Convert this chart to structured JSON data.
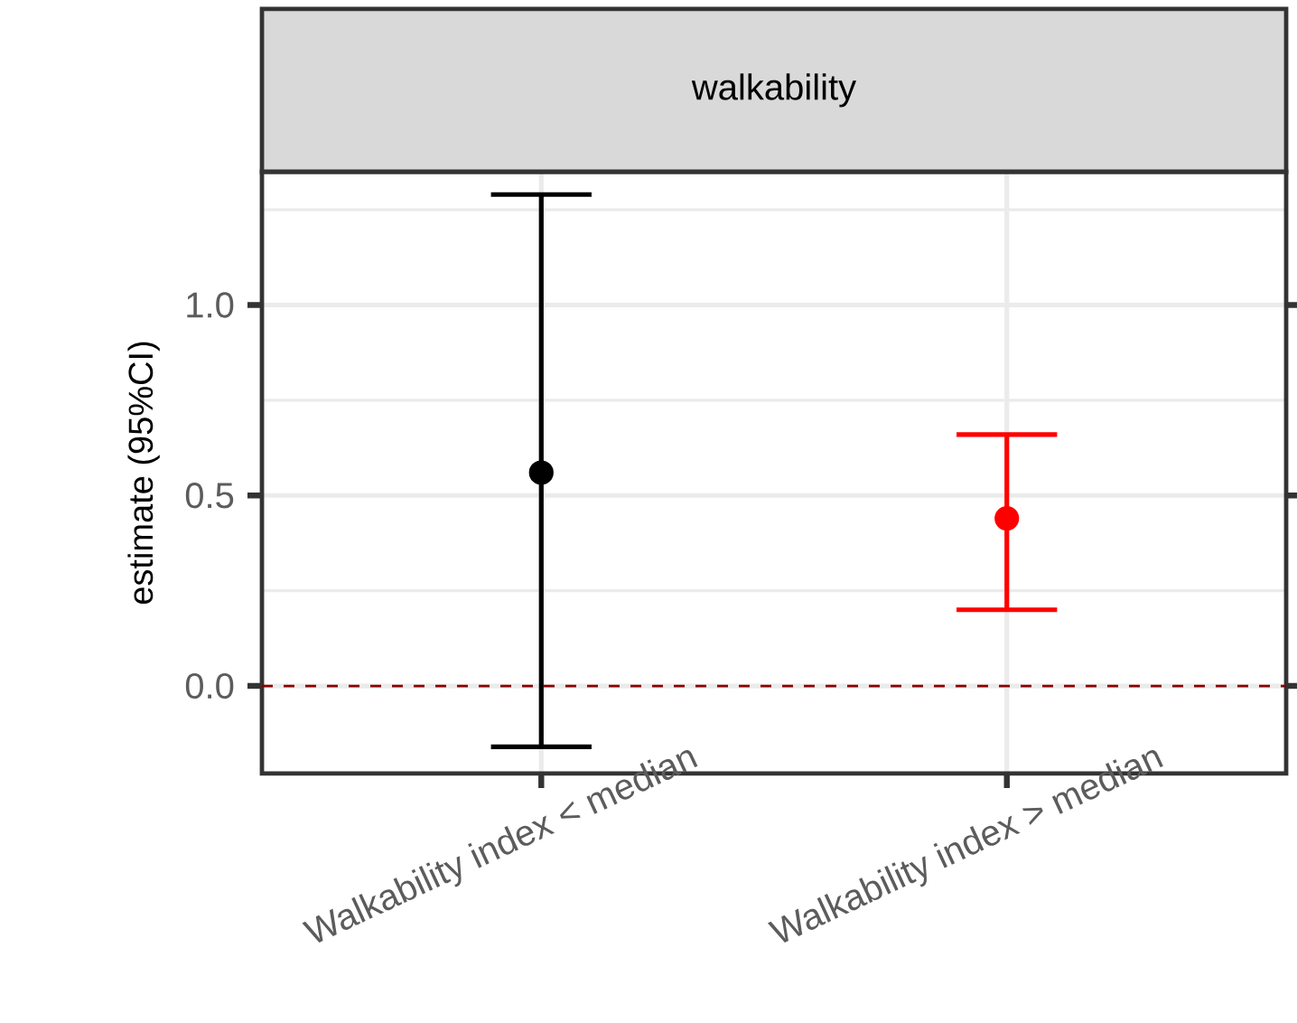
{
  "chart_data": {
    "type": "scatter",
    "title": "walkability",
    "ylabel": "estimate (95%CI)",
    "categories": [
      "Walkability index < median",
      "Walkability index > median"
    ],
    "values": [
      0.56,
      0.44
    ],
    "errors": [
      [
        -0.16,
        1.29
      ],
      [
        0.2,
        0.66
      ]
    ],
    "colors": [
      "#000000",
      "#ff0000"
    ],
    "ylim": [
      -0.23,
      1.35
    ],
    "yticks": [
      {
        "value": 0,
        "label": "0.0"
      },
      0.5,
      {
        "value": 1,
        "label": "1.0"
      }
    ],
    "grid": true,
    "marker": "circle",
    "ref_lines": [
      {
        "axis": "y",
        "value": 0,
        "color": "#8b0000",
        "line_style": "dashed"
      }
    ]
  }
}
